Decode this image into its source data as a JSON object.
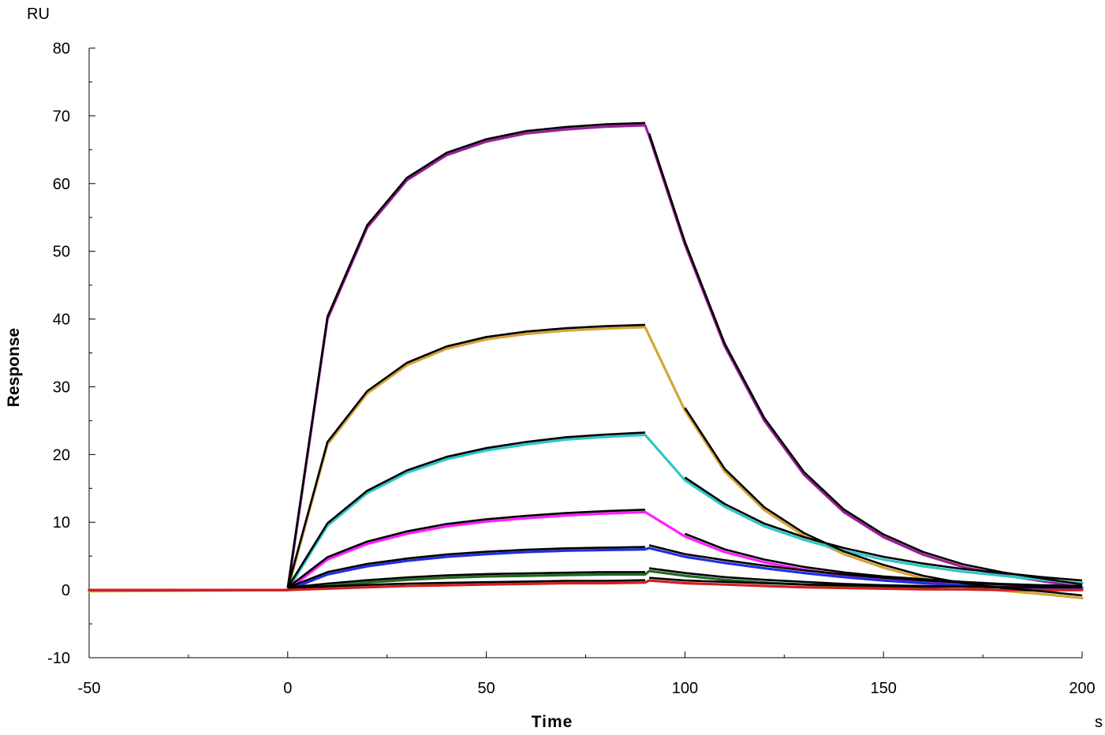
{
  "chart_data": {
    "type": "line",
    "xlabel": "Time",
    "ylabel": "Response",
    "x_unit": "s",
    "y_unit": "RU",
    "xlim": [
      -50,
      200
    ],
    "ylim": [
      -10,
      80
    ],
    "x_ticks": [
      -50,
      0,
      50,
      100,
      150,
      200
    ],
    "y_ticks": [
      -10,
      0,
      10,
      20,
      30,
      40,
      50,
      60,
      70,
      80
    ],
    "grid": false,
    "legend": "none",
    "injection_start": 0,
    "injection_end": 90,
    "series": [
      {
        "color": "#9b1f9b",
        "fit_color": "#000000",
        "points": [
          [
            -50,
            0
          ],
          [
            0,
            0
          ],
          [
            10,
            40.0
          ],
          [
            20,
            53.5
          ],
          [
            30,
            60.5
          ],
          [
            40,
            64.2
          ],
          [
            50,
            66.2
          ],
          [
            60,
            67.4
          ],
          [
            70,
            68.0
          ],
          [
            80,
            68.4
          ],
          [
            90,
            68.6
          ],
          [
            91,
            67.0
          ],
          [
            100,
            51.0
          ],
          [
            110,
            36.0
          ],
          [
            120,
            25.0
          ],
          [
            130,
            17.0
          ],
          [
            140,
            11.5
          ],
          [
            150,
            7.8
          ],
          [
            160,
            5.2
          ],
          [
            170,
            3.4
          ],
          [
            180,
            2.2
          ],
          [
            190,
            1.3
          ],
          [
            200,
            0.4
          ]
        ]
      },
      {
        "color": "#d4a437",
        "fit_color": "#000000",
        "points": [
          [
            -50,
            -0.2
          ],
          [
            0,
            0
          ],
          [
            10,
            21.5
          ],
          [
            20,
            29.0
          ],
          [
            30,
            33.2
          ],
          [
            40,
            35.6
          ],
          [
            50,
            37.0
          ],
          [
            60,
            37.8
          ],
          [
            70,
            38.3
          ],
          [
            80,
            38.6
          ],
          [
            90,
            38.8
          ],
          [
            100,
            26.5
          ],
          [
            110,
            17.5
          ],
          [
            120,
            11.8
          ],
          [
            130,
            8.0
          ],
          [
            140,
            5.3
          ],
          [
            150,
            3.3
          ],
          [
            160,
            1.7
          ],
          [
            170,
            0.6
          ],
          [
            180,
            -0.1
          ],
          [
            190,
            -0.6
          ],
          [
            200,
            -1.2
          ]
        ]
      },
      {
        "color": "#2fc6c6",
        "fit_color": "#000000",
        "points": [
          [
            -50,
            0
          ],
          [
            0,
            0
          ],
          [
            10,
            9.5
          ],
          [
            20,
            14.3
          ],
          [
            30,
            17.3
          ],
          [
            40,
            19.3
          ],
          [
            50,
            20.6
          ],
          [
            60,
            21.5
          ],
          [
            70,
            22.2
          ],
          [
            80,
            22.6
          ],
          [
            90,
            22.9
          ],
          [
            100,
            16.2
          ],
          [
            110,
            12.3
          ],
          [
            120,
            9.4
          ],
          [
            130,
            7.4
          ],
          [
            140,
            5.8
          ],
          [
            150,
            4.5
          ],
          [
            160,
            3.5
          ],
          [
            170,
            2.7
          ],
          [
            180,
            2.1
          ],
          [
            190,
            1.5
          ],
          [
            200,
            1.0
          ]
        ]
      },
      {
        "color": "#ff1fff",
        "fit_color": "#000000",
        "points": [
          [
            -50,
            0
          ],
          [
            0,
            0
          ],
          [
            10,
            4.5
          ],
          [
            20,
            6.8
          ],
          [
            30,
            8.3
          ],
          [
            40,
            9.4
          ],
          [
            50,
            10.1
          ],
          [
            60,
            10.6
          ],
          [
            70,
            11.0
          ],
          [
            80,
            11.3
          ],
          [
            90,
            11.5
          ],
          [
            100,
            7.9
          ],
          [
            110,
            5.6
          ],
          [
            120,
            4.1
          ],
          [
            130,
            3.0
          ],
          [
            140,
            2.2
          ],
          [
            150,
            1.6
          ],
          [
            160,
            1.2
          ],
          [
            170,
            0.8
          ],
          [
            180,
            0.5
          ],
          [
            190,
            0.3
          ],
          [
            200,
            0.2
          ]
        ]
      },
      {
        "color": "#1f2fe0",
        "fit_color": "#000000",
        "points": [
          [
            -50,
            0
          ],
          [
            0,
            0
          ],
          [
            10,
            2.3
          ],
          [
            20,
            3.5
          ],
          [
            30,
            4.3
          ],
          [
            40,
            4.9
          ],
          [
            50,
            5.3
          ],
          [
            60,
            5.6
          ],
          [
            70,
            5.8
          ],
          [
            80,
            5.9
          ],
          [
            90,
            6.0
          ],
          [
            91,
            6.2
          ],
          [
            100,
            4.9
          ],
          [
            110,
            4.0
          ],
          [
            120,
            3.2
          ],
          [
            130,
            2.5
          ],
          [
            140,
            1.9
          ],
          [
            150,
            1.4
          ],
          [
            160,
            1.0
          ],
          [
            170,
            0.7
          ],
          [
            180,
            0.4
          ],
          [
            190,
            0.2
          ],
          [
            200,
            0.1
          ]
        ]
      },
      {
        "color": "#1f6b1f",
        "fit_color": "#000000",
        "points": [
          [
            -50,
            0
          ],
          [
            0,
            0
          ],
          [
            10,
            0.6
          ],
          [
            20,
            1.1
          ],
          [
            30,
            1.5
          ],
          [
            40,
            1.8
          ],
          [
            50,
            2.0
          ],
          [
            60,
            2.1
          ],
          [
            70,
            2.2
          ],
          [
            80,
            2.3
          ],
          [
            90,
            2.3
          ],
          [
            91,
            2.8
          ],
          [
            100,
            2.1
          ],
          [
            110,
            1.5
          ],
          [
            120,
            1.1
          ],
          [
            130,
            0.8
          ],
          [
            140,
            0.5
          ],
          [
            150,
            0.3
          ],
          [
            160,
            0.2
          ],
          [
            170,
            0.1
          ],
          [
            180,
            0.0
          ],
          [
            190,
            0.0
          ],
          [
            200,
            0.0
          ]
        ]
      },
      {
        "color": "#d41f1f",
        "fit_color": "#000000",
        "points": [
          [
            -50,
            0
          ],
          [
            0,
            0
          ],
          [
            10,
            0.2
          ],
          [
            20,
            0.4
          ],
          [
            30,
            0.6
          ],
          [
            40,
            0.7
          ],
          [
            50,
            0.8
          ],
          [
            60,
            0.9
          ],
          [
            70,
            1.0
          ],
          [
            80,
            1.0
          ],
          [
            90,
            1.1
          ],
          [
            91,
            1.4
          ],
          [
            100,
            1.0
          ],
          [
            110,
            0.8
          ],
          [
            120,
            0.6
          ],
          [
            130,
            0.4
          ],
          [
            140,
            0.3
          ],
          [
            150,
            0.2
          ],
          [
            160,
            0.1
          ],
          [
            170,
            0.1
          ],
          [
            180,
            0.0
          ],
          [
            190,
            0.0
          ],
          [
            200,
            0.0
          ]
        ]
      }
    ]
  }
}
